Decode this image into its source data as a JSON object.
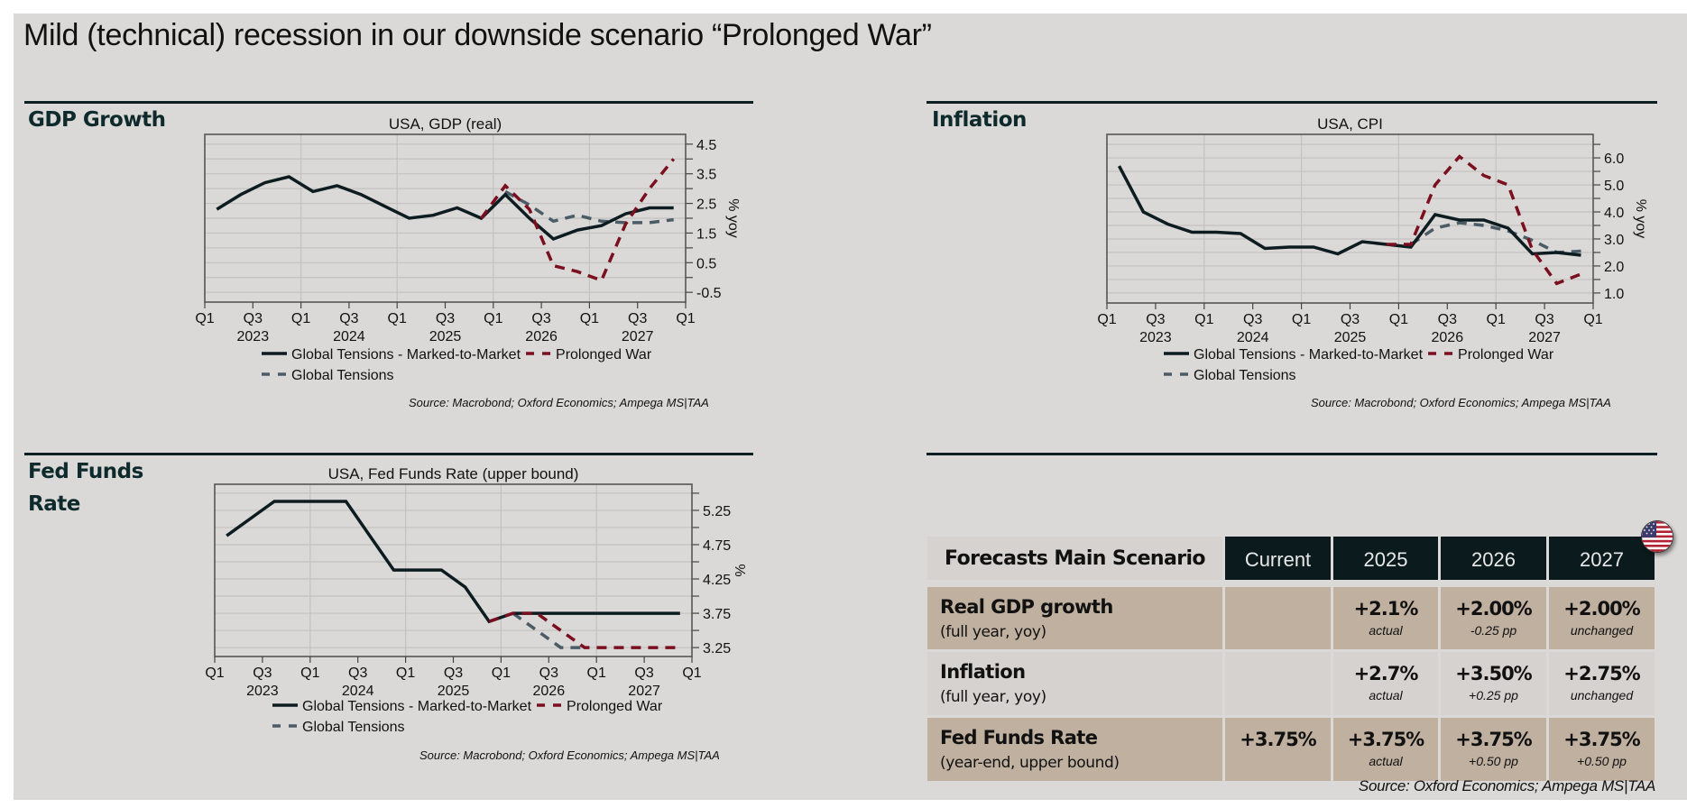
{
  "title": "Mild (technical) recession in our downside scenario “Prolonged War”",
  "sections": {
    "gdp": "GDP Growth",
    "inflation": "Inflation",
    "fed": "Fed Funds Rate"
  },
  "colors": {
    "marked_to_market": "#0d1c21",
    "prolonged_war": "#7a0f1f",
    "global_tensions": "#4b5c66",
    "header_dark": "#0b1a1c",
    "row_tan": "#bfb09f",
    "row_light": "#d6d2cf"
  },
  "chart_source": "Source: Macrobond; Oxford Economics; Ampega MS|TAA",
  "chart_data": [
    {
      "type": "line",
      "id": "gdp",
      "title": "USA, GDP (real)",
      "ylabel": "% yoy",
      "xlabel": "",
      "ylim": [
        -0.83,
        4.83
      ],
      "yticks": [
        -0.5,
        0.5,
        1.5,
        2.5,
        3.5,
        4.5
      ],
      "yminor_step": 0.5,
      "grid": true,
      "legend_position": "bottom",
      "x_quarters": [
        "2023Q1",
        "2023Q2",
        "2023Q3",
        "2023Q4",
        "2024Q1",
        "2024Q2",
        "2024Q3",
        "2024Q4",
        "2025Q1",
        "2025Q2",
        "2025Q3",
        "2025Q4",
        "2026Q1",
        "2026Q2",
        "2026Q3",
        "2026Q4",
        "2027Q1",
        "2027Q2",
        "2027Q3",
        "2027Q4"
      ],
      "xtick_labels": [
        "Q1",
        "Q3",
        "Q1",
        "Q3",
        "Q1",
        "Q3",
        "Q1",
        "Q3",
        "Q1",
        "Q3",
        "Q1"
      ],
      "xyear_labels": [
        "2023",
        "2024",
        "2025",
        "2026",
        "2027"
      ],
      "series": [
        {
          "name": "Global Tensions - Marked-to-Market",
          "style": "solid",
          "color_key": "marked_to_market",
          "start_index": 0,
          "values": [
            2.3,
            2.8,
            3.2,
            3.4,
            2.9,
            3.1,
            2.8,
            2.4,
            2.0,
            2.1,
            2.35,
            2.0,
            2.8,
            2.0,
            1.3,
            1.6,
            1.75,
            2.15,
            2.35,
            2.35
          ]
        },
        {
          "name": "Prolonged War",
          "style": "dashed",
          "color_key": "prolonged_war",
          "start_index": 11,
          "values": [
            2.0,
            3.1,
            2.3,
            0.4,
            0.2,
            -0.1,
            1.8,
            3.0,
            4.0
          ]
        },
        {
          "name": "Global Tensions",
          "style": "dashed",
          "color_key": "global_tensions",
          "start_index": 12,
          "values": [
            2.9,
            2.45,
            1.9,
            2.1,
            1.9,
            1.85,
            1.85,
            1.95
          ]
        }
      ]
    },
    {
      "type": "line",
      "id": "cpi",
      "title": "USA, CPI",
      "ylabel": "% yoy",
      "xlabel": "",
      "ylim": [
        0.63,
        6.87
      ],
      "yticks": [
        1.0,
        2.0,
        3.0,
        4.0,
        5.0,
        6.0
      ],
      "yminor_step": 0.5,
      "grid": true,
      "legend_position": "bottom",
      "x_quarters": [
        "2023Q1",
        "2023Q2",
        "2023Q3",
        "2023Q4",
        "2024Q1",
        "2024Q2",
        "2024Q3",
        "2024Q4",
        "2025Q1",
        "2025Q2",
        "2025Q3",
        "2025Q4",
        "2026Q1",
        "2026Q2",
        "2026Q3",
        "2026Q4",
        "2027Q1",
        "2027Q2",
        "2027Q3",
        "2027Q4"
      ],
      "xtick_labels": [
        "Q1",
        "Q3",
        "Q1",
        "Q3",
        "Q1",
        "Q3",
        "Q1",
        "Q3",
        "Q1",
        "Q3",
        "Q1"
      ],
      "xyear_labels": [
        "2023",
        "2024",
        "2025",
        "2026",
        "2027"
      ],
      "series": [
        {
          "name": "Global Tensions - Marked-to-Market",
          "style": "solid",
          "color_key": "marked_to_market",
          "start_index": 0,
          "values": [
            5.7,
            4.0,
            3.55,
            3.25,
            3.25,
            3.2,
            2.65,
            2.7,
            2.7,
            2.45,
            2.9,
            2.8,
            2.7,
            3.9,
            3.7,
            3.7,
            3.4,
            2.45,
            2.5,
            2.4
          ]
        },
        {
          "name": "Prolonged War",
          "style": "dashed",
          "color_key": "prolonged_war",
          "start_index": 11,
          "values": [
            2.8,
            2.8,
            5.0,
            6.05,
            5.35,
            5.0,
            2.6,
            1.35,
            1.7
          ]
        },
        {
          "name": "Global Tensions",
          "style": "dashed",
          "color_key": "global_tensions",
          "start_index": 12,
          "values": [
            2.8,
            3.4,
            3.6,
            3.5,
            3.3,
            2.95,
            2.5,
            2.55
          ]
        }
      ]
    },
    {
      "type": "line",
      "id": "fed",
      "title": "USA, Fed Funds Rate (upper bound)",
      "ylabel": "%",
      "xlabel": "",
      "ylim": [
        3.12,
        5.63
      ],
      "yticks": [
        3.25,
        3.75,
        4.25,
        4.75,
        5.25
      ],
      "yminor_step": 0.25,
      "grid": true,
      "legend_position": "bottom",
      "x_quarters": [
        "2023Q1",
        "2023Q2",
        "2023Q3",
        "2023Q4",
        "2024Q1",
        "2024Q2",
        "2024Q3",
        "2024Q4",
        "2025Q1",
        "2025Q2",
        "2025Q3",
        "2025Q4",
        "2026Q1",
        "2026Q2",
        "2026Q3",
        "2026Q4",
        "2027Q1",
        "2027Q2",
        "2027Q3",
        "2027Q4"
      ],
      "xtick_labels": [
        "Q1",
        "Q3",
        "Q1",
        "Q3",
        "Q1",
        "Q3",
        "Q1",
        "Q3",
        "Q1",
        "Q3",
        "Q1"
      ],
      "xyear_labels": [
        "2023",
        "2024",
        "2025",
        "2026",
        "2027"
      ],
      "series": [
        {
          "name": "Global Tensions - Marked-to-Market",
          "style": "solid",
          "color_key": "marked_to_market",
          "start_index": 0,
          "values": [
            4.88,
            5.13,
            5.38,
            5.38,
            5.38,
            5.38,
            4.88,
            4.38,
            4.38,
            4.38,
            4.13,
            3.63,
            3.75,
            3.75,
            3.75,
            3.75,
            3.75,
            3.75,
            3.75,
            3.75
          ]
        },
        {
          "name": "Prolonged War",
          "style": "dashed",
          "color_key": "prolonged_war",
          "start_index": 11,
          "values": [
            3.63,
            3.75,
            3.75,
            3.5,
            3.25,
            3.25,
            3.25,
            3.25,
            3.25
          ]
        },
        {
          "name": "Global Tensions",
          "style": "dashed",
          "color_key": "global_tensions",
          "start_index": 12,
          "values": [
            3.75,
            3.5,
            3.25,
            3.25
          ]
        }
      ]
    }
  ],
  "table": {
    "corner": "Forecasts Main Scenario",
    "columns": [
      "Current",
      "2025",
      "2026",
      "2027"
    ],
    "rows": [
      {
        "label": "Real GDP growth",
        "sublabel": "(full year, yoy)",
        "cells": [
          {
            "value": "",
            "note": ""
          },
          {
            "value": "+2.1%",
            "note": "actual"
          },
          {
            "value": "+2.00%",
            "note": "-0.25 pp"
          },
          {
            "value": "+2.00%",
            "note": "unchanged"
          }
        ]
      },
      {
        "label": "Inflation",
        "sublabel": "(full year, yoy)",
        "cells": [
          {
            "value": "",
            "note": ""
          },
          {
            "value": "+2.7%",
            "note": "actual"
          },
          {
            "value": "+3.50%",
            "note": "+0.25 pp"
          },
          {
            "value": "+2.75%",
            "note": "unchanged"
          }
        ]
      },
      {
        "label": "Fed Funds Rate",
        "sublabel": "(year-end, upper bound)",
        "cells": [
          {
            "value": "+3.75%",
            "note": ""
          },
          {
            "value": "+3.75%",
            "note": "actual"
          },
          {
            "value": "+3.75%",
            "note": "+0.50 pp"
          },
          {
            "value": "+3.75%",
            "note": "+0.50 pp"
          }
        ]
      }
    ],
    "source": "Source: Oxford Economics; Ampega MS|TAA",
    "flag_icon": "us-flag-icon"
  }
}
